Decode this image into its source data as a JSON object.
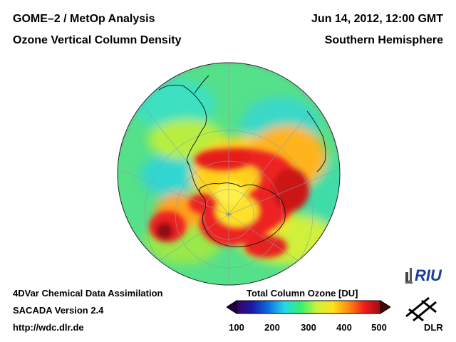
{
  "header": {
    "product": "GOME–2 / MetOp Analysis",
    "quantity": "Ozone Vertical Column Density",
    "datetime": "Jun 14, 2012, 12:00 GMT",
    "region": "Southern Hemisphere"
  },
  "footer": {
    "method": "4DVar Chemical Data Assimilation",
    "version": "SACADA Version 2.4",
    "url": "http://wdc.dlr.de"
  },
  "colorbar": {
    "title": "Total Column Ozone [DU]",
    "ticks": [
      "100",
      "200",
      "300",
      "400",
      "500"
    ],
    "min": 100,
    "max": 500,
    "colors": [
      "#3a0066",
      "#1a1aa8",
      "#0f6fe0",
      "#25d8e8",
      "#35ef70",
      "#c9f23a",
      "#ffe21a",
      "#ff8c10",
      "#ee1c1c",
      "#9e0c12"
    ]
  },
  "logos": {
    "riu": "RIU",
    "dlr": "DLR"
  },
  "map": {
    "projection": "orthographic",
    "center": "South Pole",
    "background_color": "#55e08a"
  }
}
